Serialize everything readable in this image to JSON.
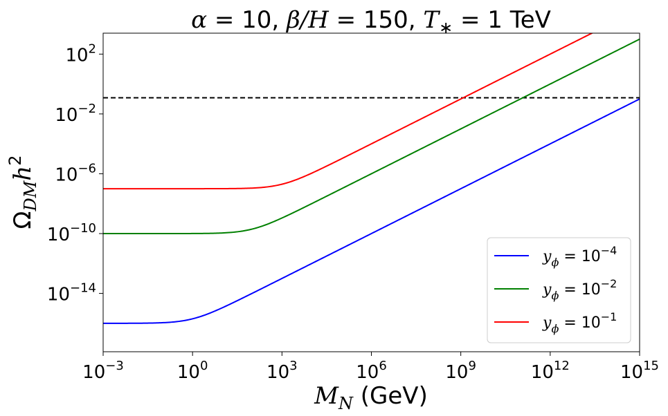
{
  "chart_data": {
    "type": "line",
    "title": {
      "alpha_sym": "α",
      "alpha_val": " = 10, ",
      "beta_sym": "β/H",
      "beta_val": " = 150, ",
      "t_sym": "T",
      "t_sub": "∗",
      "t_val": " = 1 TeV"
    },
    "xlabel": {
      "symbol": "M",
      "sub": "N",
      "unit": " (GeV)"
    },
    "ylabel": {
      "symbol": "Ω",
      "sub": "DM",
      "h": "h",
      "sup": "2"
    },
    "xscale": "log",
    "yscale": "log",
    "xlim_log10": [
      -3,
      15
    ],
    "ylim_log10": [
      -17.9,
      3.4
    ],
    "x_ticks": [
      {
        "exp": -3,
        "base": "10",
        "sup": "−3"
      },
      {
        "exp": 0,
        "base": "10",
        "sup": "0"
      },
      {
        "exp": 3,
        "base": "10",
        "sup": "3"
      },
      {
        "exp": 6,
        "base": "10",
        "sup": "6"
      },
      {
        "exp": 9,
        "base": "10",
        "sup": "9"
      },
      {
        "exp": 12,
        "base": "10",
        "sup": "12"
      },
      {
        "exp": 15,
        "base": "10",
        "sup": "15"
      }
    ],
    "y_ticks": [
      {
        "exp": 2,
        "base": "10",
        "sup": "2"
      },
      {
        "exp": -2,
        "base": "10",
        "sup": "−2"
      },
      {
        "exp": -6,
        "base": "10",
        "sup": "−6"
      },
      {
        "exp": -10,
        "base": "10",
        "sup": "−10"
      },
      {
        "exp": -14,
        "base": "10",
        "sup": "−14"
      }
    ],
    "reference_line_log10": -0.92,
    "series": [
      {
        "name": "yphi_1e-4",
        "label": {
          "y": "y",
          "sub": "ϕ",
          "eq": " = 10",
          "sup": "−4"
        },
        "color": "#0000ff",
        "plateau_log10": -16.0,
        "knee_log10_mass": 0.0,
        "slope": 1.0
      },
      {
        "name": "yphi_1e-2",
        "label": {
          "y": "y",
          "sub": "ϕ",
          "eq": " = 10",
          "sup": "−2"
        },
        "color": "#008000",
        "plateau_log10": -10.0,
        "knee_log10_mass": 2.0,
        "slope": 1.0
      },
      {
        "name": "yphi_1e-1",
        "label": {
          "y": "y",
          "sub": "ϕ",
          "eq": " = 10",
          "sup": "−1"
        },
        "color": "#ff0000",
        "plateau_log10": -7.0,
        "knee_log10_mass": 3.0,
        "slope": 1.0
      }
    ],
    "legend_position": "lower-right"
  }
}
